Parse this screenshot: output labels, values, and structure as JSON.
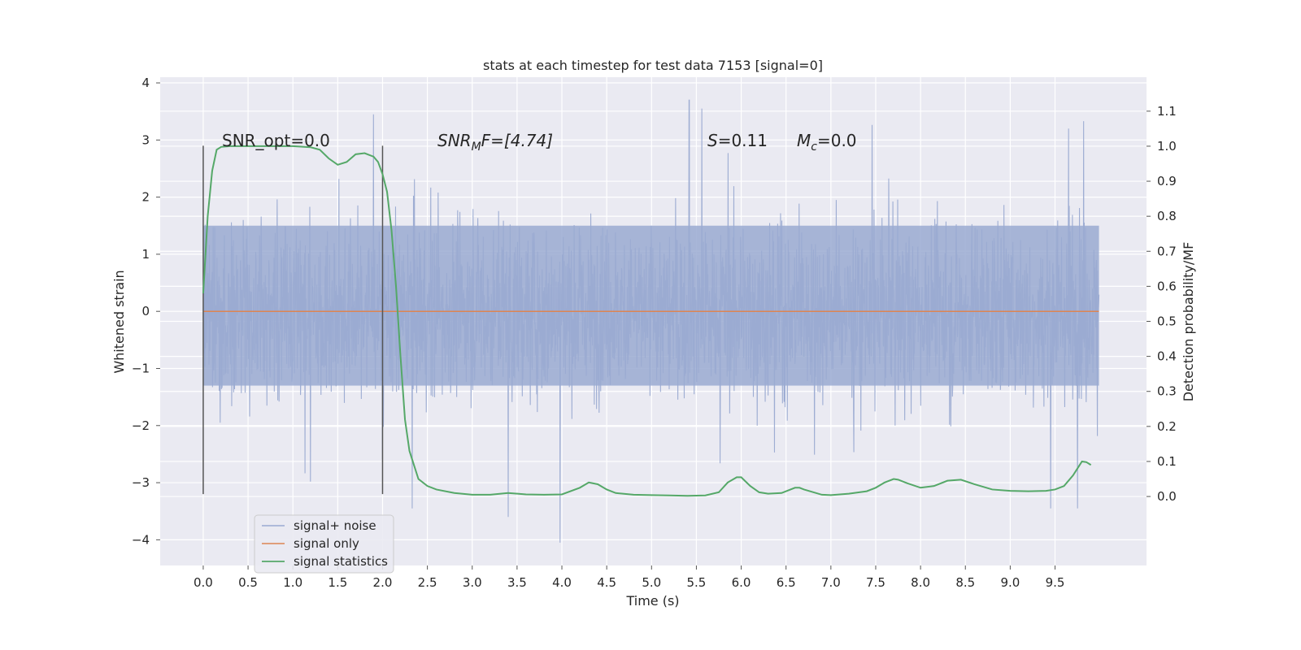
{
  "chart_data": {
    "type": "line",
    "title": "stats at each timestep for test data 7153 [signal=0]",
    "xlabel": "Time (s)",
    "ylabel": "Whitened strain",
    "y2label": "Detection probability/MF",
    "xlim": [
      -0.48,
      10.52
    ],
    "ylim": [
      -4.45,
      4.1
    ],
    "y2lim": [
      -0.197,
      1.197
    ],
    "x_ticks": [
      "0.0",
      "0.5",
      "1.0",
      "1.5",
      "2.0",
      "2.5",
      "3.0",
      "3.5",
      "4.0",
      "4.5",
      "5.0",
      "5.5",
      "6.0",
      "6.5",
      "7.0",
      "7.5",
      "8.0",
      "8.5",
      "9.0",
      "9.5"
    ],
    "y_ticks": [
      "4",
      "3",
      "2",
      "1",
      "0",
      "−1",
      "−2",
      "−3",
      "−4"
    ],
    "y2_ticks": [
      "1.1",
      "1.0",
      "0.9",
      "0.8",
      "0.7",
      "0.6",
      "0.5",
      "0.4",
      "0.3",
      "0.2",
      "0.1",
      "0.0"
    ],
    "grid": true,
    "legend_position": "lower-left",
    "annotations": {
      "snr_opt": "SNR_opt=0.0",
      "snr_mf_sym": "SNR",
      "snr_mf_sub": "M",
      "snr_mf_rest": "F=[4.74]",
      "s_sym": "S",
      "s_rest": "=0.11",
      "mc_sym": "M",
      "mc_sub": "c",
      "mc_rest": "=0.0"
    },
    "window_markers": {
      "x": [
        0.0,
        2.0
      ],
      "y_range": [
        -3.2,
        2.9
      ]
    },
    "series": [
      {
        "name": "signal+ noise",
        "color": "#9aaad1",
        "x_range": [
          0.0,
          9.99
        ],
        "core_range": [
          -1.3,
          1.5
        ],
        "spike_range": [
          -4.0,
          3.7
        ],
        "peaks": [
          {
            "x": 1.9,
            "y": 3.45
          },
          {
            "x": 2.33,
            "y": -3.45
          },
          {
            "x": 3.4,
            "y": -3.6
          },
          {
            "x": 3.98,
            "y": -4.05
          },
          {
            "x": 5.42,
            "y": 3.7
          },
          {
            "x": 5.56,
            "y": 3.55
          },
          {
            "x": 9.45,
            "y": -3.45
          },
          {
            "x": 9.75,
            "y": -3.45
          },
          {
            "x": 9.65,
            "y": 3.2
          }
        ]
      },
      {
        "name": "signal only",
        "color": "#dd8452",
        "x": [
          0.0,
          9.99
        ],
        "y": [
          0.0,
          0.0
        ]
      },
      {
        "name": "signal statistics",
        "color": "#55a868",
        "axis": "right",
        "x": [
          0.0,
          0.05,
          0.1,
          0.15,
          0.2,
          0.3,
          0.5,
          0.8,
          1.0,
          1.2,
          1.3,
          1.4,
          1.5,
          1.6,
          1.7,
          1.8,
          1.9,
          1.95,
          2.0,
          2.05,
          2.1,
          2.15,
          2.2,
          2.25,
          2.3,
          2.35,
          2.4,
          2.5,
          2.6,
          2.8,
          3.0,
          3.2,
          3.4,
          3.6,
          3.8,
          4.0,
          4.2,
          4.3,
          4.4,
          4.5,
          4.6,
          4.8,
          5.0,
          5.2,
          5.4,
          5.6,
          5.75,
          5.85,
          5.95,
          6.0,
          6.1,
          6.2,
          6.3,
          6.45,
          6.6,
          6.65,
          6.7,
          6.9,
          7.0,
          7.2,
          7.4,
          7.5,
          7.6,
          7.7,
          7.75,
          7.85,
          8.0,
          8.15,
          8.3,
          8.45,
          8.6,
          8.8,
          9.0,
          9.2,
          9.4,
          9.5,
          9.6,
          9.7,
          9.75,
          9.8,
          9.85,
          9.9
        ],
        "y": [
          0.58,
          0.8,
          0.93,
          0.99,
          0.998,
          1.0,
          1.0,
          1.0,
          1.0,
          0.997,
          0.99,
          0.965,
          0.947,
          0.955,
          0.977,
          0.98,
          0.97,
          0.955,
          0.92,
          0.87,
          0.76,
          0.6,
          0.4,
          0.22,
          0.13,
          0.09,
          0.05,
          0.03,
          0.02,
          0.01,
          0.005,
          0.005,
          0.01,
          0.006,
          0.005,
          0.006,
          0.025,
          0.04,
          0.035,
          0.02,
          0.01,
          0.005,
          0.004,
          0.003,
          0.002,
          0.003,
          0.012,
          0.04,
          0.055,
          0.055,
          0.03,
          0.012,
          0.008,
          0.01,
          0.025,
          0.025,
          0.02,
          0.005,
          0.004,
          0.008,
          0.015,
          0.025,
          0.04,
          0.05,
          0.048,
          0.038,
          0.025,
          0.03,
          0.045,
          0.048,
          0.035,
          0.02,
          0.016,
          0.015,
          0.016,
          0.02,
          0.03,
          0.06,
          0.08,
          0.1,
          0.098,
          0.09
        ]
      }
    ]
  }
}
